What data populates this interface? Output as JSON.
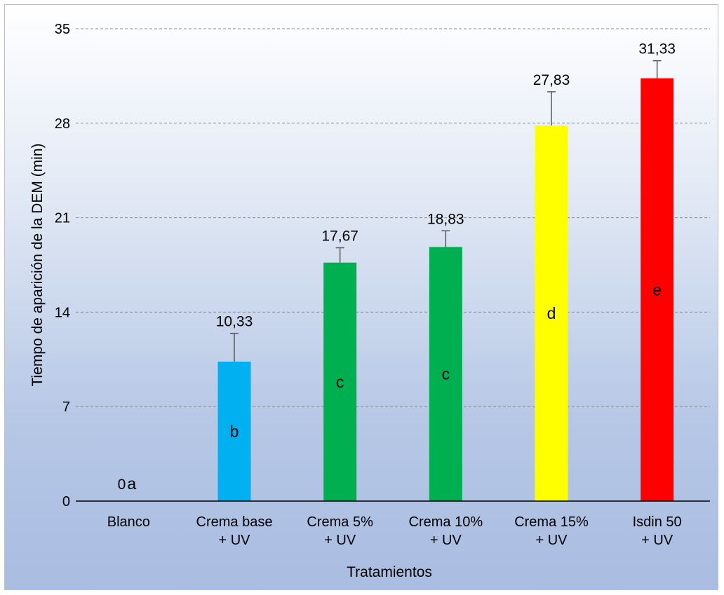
{
  "chart_data": {
    "type": "bar",
    "title": "",
    "xlabel": "Tratamientos",
    "ylabel": "Tiempo de aparición de la DEM (min)",
    "ylim": [
      0,
      35
    ],
    "yticks": [
      "0",
      "7",
      "14",
      "21",
      "28",
      "35"
    ],
    "grid": true,
    "categories": [
      [
        "Blanco"
      ],
      [
        "Crema base",
        "+ UV"
      ],
      [
        "Crema 5%",
        "+ UV"
      ],
      [
        "Crema 10%",
        "+ UV"
      ],
      [
        "Crema 15%",
        "+ UV"
      ],
      [
        "Isdin 50",
        "+ UV"
      ]
    ],
    "values": [
      0,
      10.33,
      17.67,
      18.83,
      27.83,
      31.33
    ],
    "value_labels": [
      "0",
      "10,33",
      "17,67",
      "18,83",
      "27,83",
      "31,33"
    ],
    "error": [
      0,
      2.1,
      1.1,
      1.2,
      2.5,
      1.3
    ],
    "group_letters": [
      "a",
      "b",
      "c",
      "c",
      "d",
      "e"
    ],
    "colors": [
      "#00b0f0",
      "#00b0f0",
      "#00b050",
      "#00b050",
      "#ffff00",
      "#ff0000"
    ]
  }
}
